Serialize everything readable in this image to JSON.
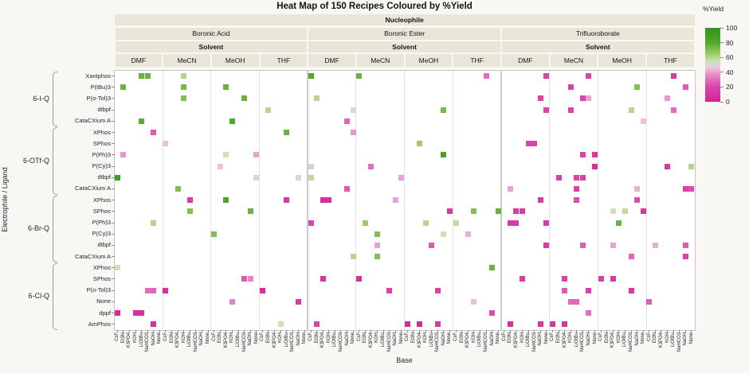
{
  "title": "Heat Map of 150 Recipes Coloured by %Yield",
  "axes": {
    "x_title": "Base",
    "y_title": "Electrophile / Ligand"
  },
  "legend": {
    "title": "%Yield",
    "ticks": [
      100,
      80,
      60,
      40,
      20,
      0
    ]
  },
  "chart_data": {
    "type": "heatmap",
    "header_labels": {
      "nucleophile": "Nucleophile",
      "solvent": "Solvent"
    },
    "nucleophiles": [
      "Boronic Acid",
      "Boronic Ester",
      "Trifluoroborate"
    ],
    "solvents": [
      "DMF",
      "MeCN",
      "MeOH",
      "THF"
    ],
    "bases": [
      "CsF",
      "Et3N",
      "K3PO4",
      "KOH",
      "LiOtBu",
      "NaHCO3",
      "NaOH",
      "None"
    ],
    "row_groups": [
      {
        "label": "6-I-Q",
        "ligands": [
          "Xantphos",
          "P(tBu)3",
          "P(o-Tol)3",
          "dtbpf",
          "CataCXium A"
        ]
      },
      {
        "label": "6-OTf-Q",
        "ligands": [
          "XPhos",
          "SPhos",
          "P(Ph)3",
          "P(Cy)3",
          "dtbpf",
          "CataCXium A"
        ]
      },
      {
        "label": "6-Br-Q",
        "ligands": [
          "XPhos",
          "SPhos",
          "P(Ph)3",
          "P(Cy)3",
          "dtbpf",
          "CataCXium A"
        ]
      },
      {
        "label": "6-Cl-Q",
        "ligands": [
          "XPhos",
          "SPhos",
          "P(o-Tol)3",
          "None",
          "dppf",
          "AmPhos"
        ]
      }
    ],
    "colormap": [
      [
        0,
        "#d5219b"
      ],
      [
        20,
        "#da44aa"
      ],
      [
        35,
        "#e685c6"
      ],
      [
        45,
        "#edbfdd"
      ],
      [
        50,
        "#d8d8d2"
      ],
      [
        55,
        "#cfe0b4"
      ],
      [
        65,
        "#9ccc68"
      ],
      [
        80,
        "#4fa82c"
      ],
      [
        100,
        "#2f9818"
      ]
    ],
    "yield_range": [
      0,
      100
    ],
    "cell_format": [
      "nucleophile_idx",
      "solvent_idx",
      "base_idx",
      "row_idx",
      "yield_pct"
    ],
    "cells": [
      [
        0,
        0,
        4,
        0,
        75
      ],
      [
        0,
        0,
        5,
        0,
        75
      ],
      [
        0,
        0,
        1,
        1,
        75
      ],
      [
        0,
        0,
        4,
        4,
        78
      ],
      [
        0,
        0,
        6,
        5,
        25
      ],
      [
        0,
        0,
        1,
        7,
        38
      ],
      [
        0,
        0,
        0,
        9,
        90
      ],
      [
        0,
        0,
        6,
        13,
        60
      ],
      [
        0,
        0,
        0,
        17,
        55
      ],
      [
        0,
        0,
        5,
        19,
        30
      ],
      [
        0,
        0,
        6,
        19,
        28
      ],
      [
        0,
        0,
        0,
        21,
        5
      ],
      [
        0,
        0,
        3,
        21,
        8
      ],
      [
        0,
        0,
        4,
        21,
        8
      ],
      [
        0,
        0,
        6,
        22,
        6
      ],
      [
        0,
        1,
        3,
        0,
        60
      ],
      [
        0,
        1,
        3,
        1,
        72
      ],
      [
        0,
        1,
        3,
        2,
        70
      ],
      [
        0,
        1,
        0,
        6,
        45
      ],
      [
        0,
        1,
        2,
        10,
        70
      ],
      [
        0,
        1,
        4,
        11,
        15
      ],
      [
        0,
        1,
        4,
        12,
        70
      ],
      [
        0,
        1,
        0,
        19,
        8
      ],
      [
        0,
        2,
        2,
        1,
        75
      ],
      [
        0,
        2,
        5,
        2,
        75
      ],
      [
        0,
        2,
        3,
        4,
        80
      ],
      [
        0,
        2,
        2,
        7,
        55
      ],
      [
        0,
        2,
        7,
        7,
        40
      ],
      [
        0,
        2,
        1,
        8,
        45
      ],
      [
        0,
        2,
        7,
        9,
        50
      ],
      [
        0,
        2,
        2,
        11,
        80
      ],
      [
        0,
        2,
        6,
        12,
        75
      ],
      [
        0,
        2,
        0,
        14,
        70
      ],
      [
        0,
        2,
        5,
        18,
        25
      ],
      [
        0,
        2,
        6,
        18,
        35
      ],
      [
        0,
        2,
        3,
        20,
        35
      ],
      [
        0,
        3,
        1,
        3,
        60
      ],
      [
        0,
        3,
        4,
        5,
        75
      ],
      [
        0,
        3,
        6,
        9,
        50
      ],
      [
        0,
        3,
        4,
        11,
        15
      ],
      [
        0,
        3,
        0,
        19,
        5
      ],
      [
        0,
        3,
        6,
        20,
        15
      ],
      [
        0,
        3,
        3,
        22,
        55
      ],
      [
        1,
        0,
        0,
        0,
        80
      ],
      [
        1,
        0,
        1,
        2,
        60
      ],
      [
        1,
        0,
        7,
        3,
        52
      ],
      [
        1,
        0,
        6,
        4,
        28
      ],
      [
        1,
        0,
        7,
        5,
        38
      ],
      [
        1,
        0,
        0,
        8,
        48
      ],
      [
        1,
        0,
        0,
        9,
        58
      ],
      [
        1,
        0,
        6,
        10,
        25
      ],
      [
        1,
        0,
        2,
        11,
        8
      ],
      [
        1,
        0,
        3,
        11,
        10
      ],
      [
        1,
        0,
        0,
        13,
        20
      ],
      [
        1,
        0,
        7,
        16,
        60
      ],
      [
        1,
        0,
        2,
        18,
        10
      ],
      [
        1,
        0,
        1,
        22,
        18
      ],
      [
        1,
        1,
        0,
        0,
        75
      ],
      [
        1,
        1,
        2,
        8,
        30
      ],
      [
        1,
        1,
        7,
        9,
        40
      ],
      [
        1,
        1,
        6,
        11,
        40
      ],
      [
        1,
        1,
        1,
        13,
        65
      ],
      [
        1,
        1,
        3,
        14,
        70
      ],
      [
        1,
        1,
        3,
        15,
        40
      ],
      [
        1,
        1,
        3,
        16,
        70
      ],
      [
        1,
        1,
        0,
        18,
        8
      ],
      [
        1,
        1,
        5,
        19,
        18
      ],
      [
        1,
        2,
        6,
        3,
        72
      ],
      [
        1,
        2,
        2,
        6,
        65
      ],
      [
        1,
        2,
        6,
        7,
        85
      ],
      [
        1,
        2,
        7,
        12,
        15
      ],
      [
        1,
        2,
        3,
        13,
        60
      ],
      [
        1,
        2,
        6,
        14,
        55
      ],
      [
        1,
        2,
        4,
        15,
        25
      ],
      [
        1,
        2,
        5,
        19,
        18
      ],
      [
        1,
        2,
        5,
        22,
        15
      ],
      [
        1,
        2,
        0,
        22,
        5
      ],
      [
        1,
        2,
        2,
        22,
        5
      ],
      [
        1,
        3,
        5,
        0,
        30
      ],
      [
        1,
        3,
        7,
        12,
        75
      ],
      [
        1,
        3,
        3,
        12,
        70
      ],
      [
        1,
        3,
        0,
        13,
        58
      ],
      [
        1,
        3,
        2,
        14,
        42
      ],
      [
        1,
        3,
        6,
        17,
        75
      ],
      [
        1,
        3,
        3,
        20,
        45
      ],
      [
        1,
        3,
        6,
        21,
        22
      ],
      [
        2,
        0,
        7,
        0,
        18
      ],
      [
        2,
        0,
        6,
        2,
        18
      ],
      [
        2,
        0,
        7,
        3,
        20
      ],
      [
        2,
        0,
        4,
        6,
        20
      ],
      [
        2,
        0,
        5,
        6,
        18
      ],
      [
        2,
        0,
        1,
        10,
        40
      ],
      [
        2,
        0,
        6,
        11,
        15
      ],
      [
        2,
        0,
        2,
        12,
        15
      ],
      [
        2,
        0,
        3,
        12,
        15
      ],
      [
        2,
        0,
        1,
        13,
        15
      ],
      [
        2,
        0,
        2,
        13,
        15
      ],
      [
        2,
        0,
        7,
        13,
        15
      ],
      [
        2,
        0,
        7,
        15,
        15
      ],
      [
        2,
        0,
        3,
        18,
        15
      ],
      [
        2,
        0,
        1,
        22,
        8
      ],
      [
        2,
        0,
        6,
        22,
        12
      ],
      [
        2,
        1,
        6,
        0,
        20
      ],
      [
        2,
        1,
        3,
        1,
        20
      ],
      [
        2,
        1,
        6,
        2,
        40
      ],
      [
        2,
        1,
        5,
        2,
        18
      ],
      [
        2,
        1,
        3,
        3,
        20
      ],
      [
        2,
        1,
        5,
        7,
        20
      ],
      [
        2,
        1,
        7,
        7,
        12
      ],
      [
        2,
        1,
        7,
        8,
        8
      ],
      [
        2,
        1,
        1,
        9,
        18
      ],
      [
        2,
        1,
        4,
        9,
        20
      ],
      [
        2,
        1,
        5,
        9,
        18
      ],
      [
        2,
        1,
        4,
        10,
        20
      ],
      [
        2,
        1,
        4,
        11,
        22
      ],
      [
        2,
        1,
        5,
        15,
        25
      ],
      [
        2,
        1,
        2,
        18,
        18
      ],
      [
        2,
        1,
        2,
        19,
        25
      ],
      [
        2,
        1,
        6,
        19,
        18
      ],
      [
        2,
        1,
        3,
        20,
        28
      ],
      [
        2,
        1,
        4,
        20,
        28
      ],
      [
        2,
        1,
        6,
        21,
        30
      ],
      [
        2,
        1,
        0,
        22,
        12
      ],
      [
        2,
        1,
        2,
        22,
        10
      ],
      [
        2,
        2,
        6,
        1,
        70
      ],
      [
        2,
        2,
        5,
        3,
        60
      ],
      [
        2,
        2,
        7,
        4,
        45
      ],
      [
        2,
        2,
        6,
        10,
        42
      ],
      [
        2,
        2,
        6,
        11,
        22
      ],
      [
        2,
        2,
        2,
        12,
        55
      ],
      [
        2,
        2,
        4,
        12,
        58
      ],
      [
        2,
        2,
        7,
        12,
        10
      ],
      [
        2,
        2,
        3,
        13,
        75
      ],
      [
        2,
        2,
        2,
        15,
        40
      ],
      [
        2,
        2,
        5,
        16,
        28
      ],
      [
        2,
        2,
        0,
        18,
        18
      ],
      [
        2,
        2,
        2,
        18,
        15
      ],
      [
        2,
        2,
        5,
        19,
        12
      ],
      [
        2,
        3,
        4,
        0,
        15
      ],
      [
        2,
        3,
        6,
        1,
        25
      ],
      [
        2,
        3,
        3,
        2,
        38
      ],
      [
        2,
        3,
        4,
        3,
        30
      ],
      [
        2,
        3,
        3,
        8,
        15
      ],
      [
        2,
        3,
        7,
        8,
        60
      ],
      [
        2,
        3,
        6,
        10,
        20
      ],
      [
        2,
        3,
        7,
        10,
        22
      ],
      [
        2,
        3,
        6,
        15,
        25
      ],
      [
        2,
        3,
        1,
        15,
        42
      ],
      [
        2,
        3,
        6,
        16,
        18
      ],
      [
        2,
        3,
        0,
        20,
        25
      ]
    ]
  }
}
